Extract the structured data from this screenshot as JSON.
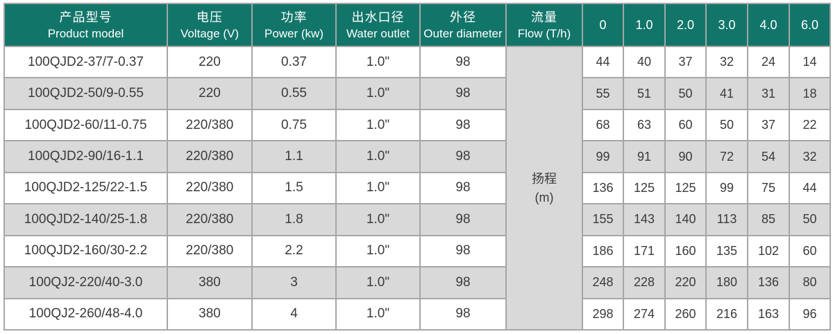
{
  "colors": {
    "accent": "#12756a",
    "row_alt": "#d9d9d9",
    "border": "#a6a6a6",
    "header_text": "#ffffff",
    "body_text": "#3a3a3a",
    "page_bg": "#ffffff"
  },
  "table": {
    "columns": [
      {
        "zh": "产品型号",
        "en": "Product model"
      },
      {
        "zh": "电压",
        "en": "Voltage (V)"
      },
      {
        "zh": "功率",
        "en": "Power (kw)"
      },
      {
        "zh": "出水口径",
        "en": "Water outlet"
      },
      {
        "zh": "外径",
        "en": "Outer diameter"
      },
      {
        "zh": "流量",
        "en": "Flow (T/h)"
      }
    ],
    "flow_ticks": [
      "0",
      "1.0",
      "2.0",
      "3.0",
      "4.0",
      "6.0"
    ],
    "head_label": {
      "zh": "扬程",
      "unit": "(m)"
    },
    "rows": [
      {
        "model": "100QJD2-37/7-0.37",
        "voltage": "220",
        "power": "0.37",
        "outlet": "1.0\"",
        "diameter": "98",
        "head_m": [
          "44",
          "40",
          "37",
          "32",
          "24",
          "14"
        ]
      },
      {
        "model": "100QJD2-50/9-0.55",
        "voltage": "220",
        "power": "0.55",
        "outlet": "1.0\"",
        "diameter": "98",
        "head_m": [
          "55",
          "51",
          "50",
          "41",
          "31",
          "18"
        ]
      },
      {
        "model": "100QJD2-60/11-0.75",
        "voltage": "220/380",
        "power": "0.75",
        "outlet": "1.0\"",
        "diameter": "98",
        "head_m": [
          "68",
          "63",
          "60",
          "50",
          "37",
          "22"
        ]
      },
      {
        "model": "100QJD2-90/16-1.1",
        "voltage": "220/380",
        "power": "1.1",
        "outlet": "1.0\"",
        "diameter": "98",
        "head_m": [
          "99",
          "91",
          "90",
          "72",
          "54",
          "32"
        ]
      },
      {
        "model": "100QJD2-125/22-1.5",
        "voltage": "220/380",
        "power": "1.5",
        "outlet": "1.0\"",
        "diameter": "98",
        "head_m": [
          "136",
          "125",
          "125",
          "99",
          "75",
          "44"
        ]
      },
      {
        "model": "100QJD2-140/25-1.8",
        "voltage": "220/380",
        "power": "1.8",
        "outlet": "1.0\"",
        "diameter": "98",
        "head_m": [
          "155",
          "143",
          "140",
          "113",
          "85",
          "50"
        ]
      },
      {
        "model": "100QJD2-160/30-2.2",
        "voltage": "220/380",
        "power": "2.2",
        "outlet": "1.0\"",
        "diameter": "98",
        "head_m": [
          "186",
          "171",
          "160",
          "135",
          "102",
          "60"
        ]
      },
      {
        "model": "100QJ2-220/40-3.0",
        "voltage": "380",
        "power": "3",
        "outlet": "1.0\"",
        "diameter": "98",
        "head_m": [
          "248",
          "228",
          "220",
          "180",
          "136",
          "80"
        ]
      },
      {
        "model": "100QJ2-260/48-4.0",
        "voltage": "380",
        "power": "4",
        "outlet": "1.0\"",
        "diameter": "98",
        "head_m": [
          "298",
          "274",
          "260",
          "216",
          "163",
          "96"
        ]
      }
    ]
  }
}
